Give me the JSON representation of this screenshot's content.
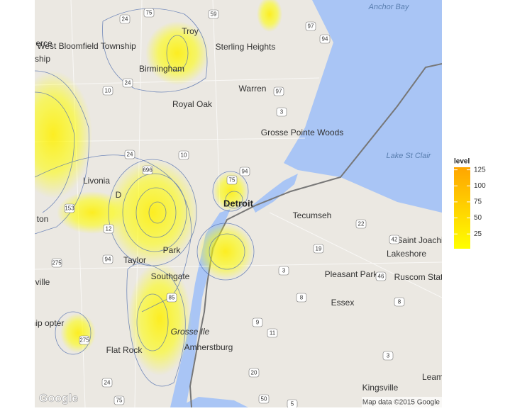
{
  "map": {
    "places": [
      "West Bloomfield Township",
      "Birmingham",
      "Troy",
      "Sterling Heights",
      "Warren",
      "Royal Oak",
      "Grosse Pointe Woods",
      "Lake St Clair",
      "Anchor Bay",
      "Livonia",
      "Detroit",
      "Tecumseh",
      "Saint Joachim",
      "Lakeshore",
      "Pleasant Park",
      "Ruscom Station",
      "Taylor",
      "Southgate",
      "Essex",
      "Grosse Ile",
      "Amherstburg",
      "Flat Rock",
      "Kingsville",
      "Leam",
      "erce",
      "ship",
      "ville",
      "ship opter",
      "ton",
      "Park",
      "D"
    ],
    "shields": [
      "75",
      "24",
      "59",
      "97",
      "94",
      "10",
      "24",
      "97",
      "3",
      "24",
      "696",
      "10",
      "94",
      "75",
      "153",
      "12",
      "22",
      "42",
      "19",
      "275",
      "94",
      "3",
      "46",
      "8",
      "85",
      "8",
      "9",
      "11",
      "275",
      "24",
      "20",
      "3",
      "75",
      "50",
      "5"
    ],
    "attribution": "Map data ©2015 Google",
    "logo": "Google"
  },
  "legend": {
    "title": "level",
    "lim": [
      2,
      129
    ],
    "ticks": [
      25,
      50,
      75,
      100,
      125
    ],
    "colors": [
      "#ffff00",
      "#ffa500"
    ]
  }
}
